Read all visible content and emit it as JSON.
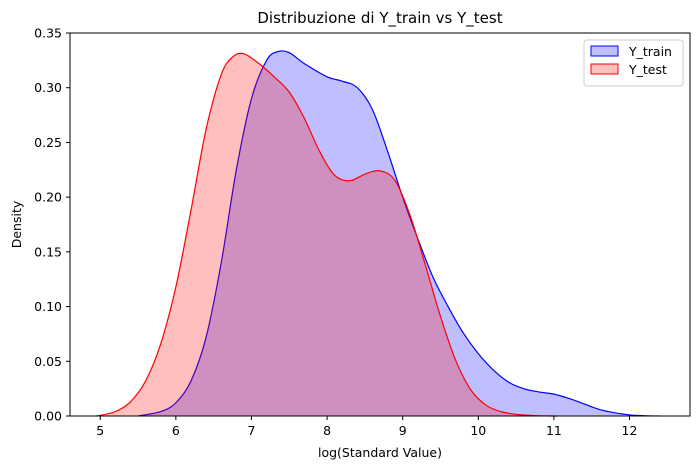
{
  "chart_data": {
    "type": "area",
    "title": "Distribuzione di Y_train vs Y_test",
    "xlabel": "log(Standard Value)",
    "ylabel": "Density",
    "xlim": [
      4.6,
      12.8
    ],
    "ylim": [
      0,
      0.35
    ],
    "xticks": [
      5,
      6,
      7,
      8,
      9,
      10,
      11,
      12
    ],
    "yticks": [
      0.0,
      0.05,
      0.1,
      0.15,
      0.2,
      0.25,
      0.3,
      0.35
    ],
    "ytick_labels": [
      "0.00",
      "0.05",
      "0.10",
      "0.15",
      "0.20",
      "0.25",
      "0.30",
      "0.35"
    ],
    "grid": false,
    "legend_position": "top-right",
    "series": [
      {
        "name": "Y_train",
        "line_color": "#0000ff",
        "fill_color": "#0000ff",
        "fill_opacity": 0.25,
        "x": [
          5.5,
          5.8,
          6.0,
          6.2,
          6.4,
          6.6,
          6.8,
          7.0,
          7.2,
          7.35,
          7.5,
          7.7,
          8.0,
          8.2,
          8.4,
          8.6,
          8.8,
          9.0,
          9.2,
          9.4,
          9.6,
          9.8,
          10.0,
          10.2,
          10.4,
          10.6,
          10.8,
          11.0,
          11.2,
          11.4,
          11.6,
          11.8,
          12.0,
          12.2,
          12.4
        ],
        "y": [
          0.0,
          0.004,
          0.012,
          0.032,
          0.072,
          0.14,
          0.225,
          0.29,
          0.325,
          0.333,
          0.332,
          0.322,
          0.31,
          0.306,
          0.3,
          0.28,
          0.242,
          0.2,
          0.162,
          0.127,
          0.1,
          0.076,
          0.057,
          0.042,
          0.031,
          0.025,
          0.022,
          0.02,
          0.016,
          0.011,
          0.006,
          0.003,
          0.001,
          0.0003,
          0.0
        ]
      },
      {
        "name": "Y_test",
        "line_color": "#ff0000",
        "fill_color": "#ff0000",
        "fill_opacity": 0.25,
        "x": [
          4.95,
          5.2,
          5.4,
          5.6,
          5.8,
          6.0,
          6.2,
          6.4,
          6.6,
          6.75,
          6.9,
          7.1,
          7.3,
          7.5,
          7.7,
          7.9,
          8.1,
          8.3,
          8.5,
          8.7,
          8.9,
          9.1,
          9.3,
          9.5,
          9.7,
          9.9,
          10.1,
          10.3,
          10.5,
          10.7,
          10.9,
          11.05
        ],
        "y": [
          0.0,
          0.004,
          0.013,
          0.032,
          0.066,
          0.118,
          0.188,
          0.262,
          0.312,
          0.328,
          0.331,
          0.322,
          0.31,
          0.296,
          0.272,
          0.242,
          0.22,
          0.215,
          0.221,
          0.224,
          0.215,
          0.183,
          0.138,
          0.091,
          0.051,
          0.024,
          0.01,
          0.004,
          0.0015,
          0.0005,
          0.0001,
          0.0
        ]
      }
    ]
  }
}
